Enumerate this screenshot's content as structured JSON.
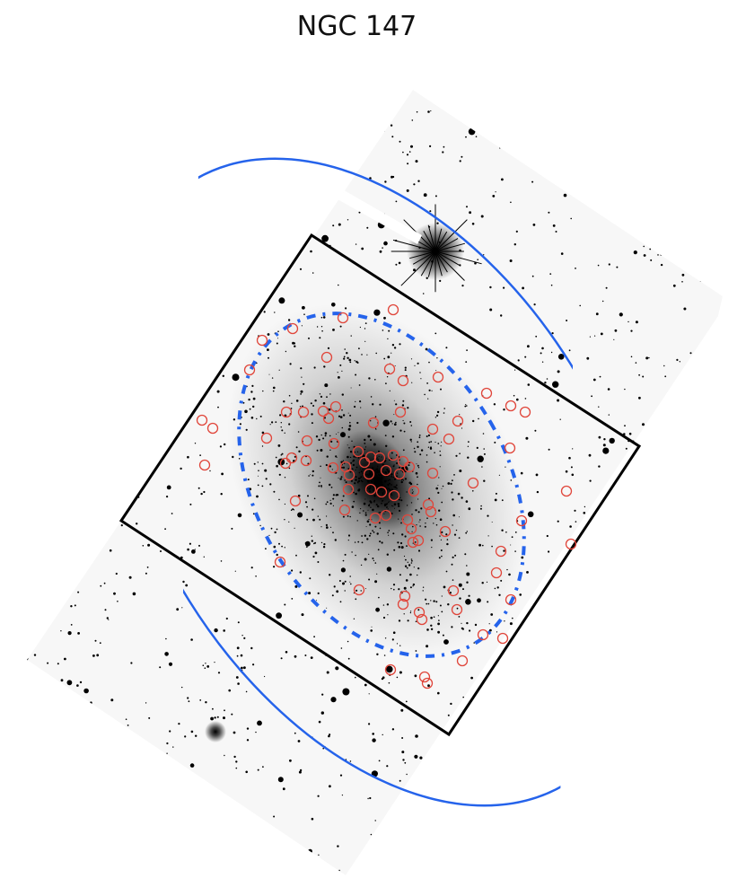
{
  "title": "NGC 147"
}
